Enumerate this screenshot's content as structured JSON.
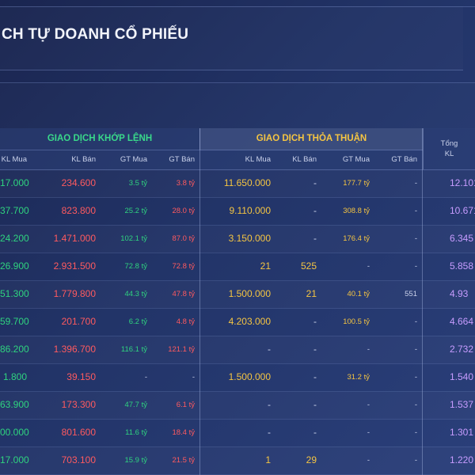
{
  "page_title": "CH TỰ DOANH CỔ PHIẾU",
  "header": {
    "group_matched": "GIAO DỊCH KHỚP LỆNH",
    "group_negotiated": "GIAO DỊCH THỎA THUẬN",
    "col_kl_mua": "KL Mua",
    "col_kl_ban": "KL Bán",
    "col_gt_mua": "GT Mua",
    "col_gt_ban": "GT Bán",
    "col_tt_kl_mua": "KL Mua",
    "col_tt_kl_ban": "KL Bán",
    "col_tt_gt_mua": "GT Mua",
    "col_tt_gt_ban": "GT Bán",
    "col_tong_line1": "Tổng",
    "col_tong_line2": "KL"
  },
  "rows": [
    {
      "kl_mua": "17.000",
      "kl_ban": "234.600",
      "gt_mua": "3.5 tỷ",
      "gt_ban": "3.8 tỷ",
      "tt_kl_mua": "11.650.000",
      "tt_kl_ban": "-",
      "tt_gt_mua": "177.7 tỷ",
      "tt_gt_ban": "-",
      "tong_kl": "12.101"
    },
    {
      "kl_mua": "37.700",
      "kl_ban": "823.800",
      "gt_mua": "25.2 tỷ",
      "gt_ban": "28.0 tỷ",
      "tt_kl_mua": "9.110.000",
      "tt_kl_ban": "-",
      "tt_gt_mua": "308.8 tỷ",
      "tt_gt_ban": "-",
      "tong_kl": "10.671"
    },
    {
      "kl_mua": "24.200",
      "kl_ban": "1.471.000",
      "gt_mua": "102.1 tỷ",
      "gt_ban": "87.0 tỷ",
      "tt_kl_mua": "3.150.000",
      "tt_kl_ban": "-",
      "tt_gt_mua": "176.4 tỷ",
      "tt_gt_ban": "-",
      "tong_kl": "6.345"
    },
    {
      "kl_mua": "26.900",
      "kl_ban": "2.931.500",
      "gt_mua": "72.8 tỷ",
      "gt_ban": "72.8 tỷ",
      "tt_kl_mua": "21",
      "tt_kl_ban": "525",
      "tt_gt_mua": "-",
      "tt_gt_ban": "-",
      "tong_kl": "5.858"
    },
    {
      "kl_mua": "51.300",
      "kl_ban": "1.779.800",
      "gt_mua": "44.3 tỷ",
      "gt_ban": "47.8 tỷ",
      "tt_kl_mua": "1.500.000",
      "tt_kl_ban": "21",
      "tt_gt_mua": "40.1 tỷ",
      "tt_gt_ban": "551",
      "tong_kl": "4.93"
    },
    {
      "kl_mua": "59.700",
      "kl_ban": "201.700",
      "gt_mua": "6.2 tỷ",
      "gt_ban": "4.8 tỷ",
      "tt_kl_mua": "4.203.000",
      "tt_kl_ban": "-",
      "tt_gt_mua": "100.5 tỷ",
      "tt_gt_ban": "-",
      "tong_kl": "4.664"
    },
    {
      "kl_mua": "86.200",
      "kl_ban": "1.396.700",
      "gt_mua": "116.1 tỷ",
      "gt_ban": "121.1 tỷ",
      "tt_kl_mua": "-",
      "tt_kl_ban": "-",
      "tt_gt_mua": "-",
      "tt_gt_ban": "-",
      "tong_kl": "2.732"
    },
    {
      "kl_mua": "1.800",
      "kl_ban": "39.150",
      "gt_mua": "-",
      "gt_ban": "-",
      "tt_kl_mua": "1.500.000",
      "tt_kl_ban": "-",
      "tt_gt_mua": "31.2 tỷ",
      "tt_gt_ban": "-",
      "tong_kl": "1.540"
    },
    {
      "kl_mua": "63.900",
      "kl_ban": "173.300",
      "gt_mua": "47.7 tỷ",
      "gt_ban": "6.1 tỷ",
      "tt_kl_mua": "-",
      "tt_kl_ban": "-",
      "tt_gt_mua": "-",
      "tt_gt_ban": "-",
      "tong_kl": "1.537"
    },
    {
      "kl_mua": "00.000",
      "kl_ban": "801.600",
      "gt_mua": "11.6 tỷ",
      "gt_ban": "18.4 tỷ",
      "tt_kl_mua": "-",
      "tt_kl_ban": "-",
      "tt_gt_mua": "-",
      "tt_gt_ban": "-",
      "tong_kl": "1.301"
    },
    {
      "kl_mua": "17.000",
      "kl_ban": "703.100",
      "gt_mua": "15.9 tỷ",
      "gt_ban": "21.5 tỷ",
      "tt_kl_mua": "1",
      "tt_kl_ban": "29",
      "tt_gt_mua": "-",
      "tt_gt_ban": "-",
      "tong_kl": "1.220"
    }
  ],
  "colors": {
    "buy": "#2fd37f",
    "sell": "#ff5a5f",
    "negotiated": "#f5c542",
    "total": "#c79cff"
  }
}
